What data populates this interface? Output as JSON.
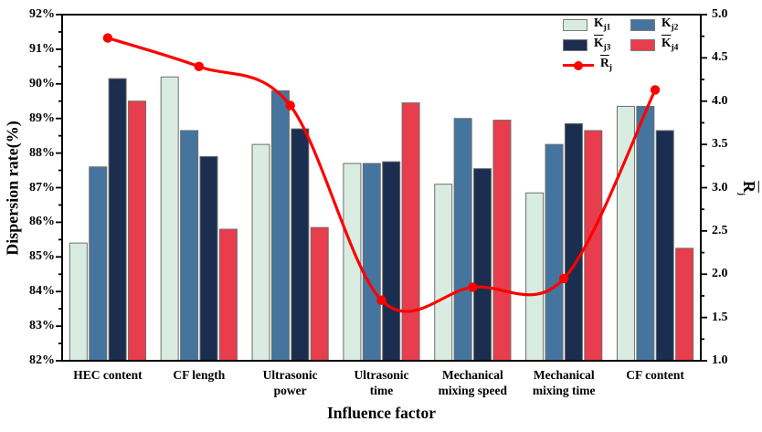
{
  "chart_data": {
    "type": "bar+line",
    "xlabel": "Influence factor",
    "ylabel": "Dispersion rate(%)",
    "y2label": {
      "base": "R",
      "sub": "j",
      "overline": true
    },
    "categories": [
      [
        "HEC content"
      ],
      [
        "CF length"
      ],
      [
        "Ultrasonic",
        "power"
      ],
      [
        "Ultrasonic",
        "time"
      ],
      [
        "Mechanical",
        "mixing speed"
      ],
      [
        "Mechanical",
        "mixing time"
      ],
      [
        "CF content"
      ]
    ],
    "bar_series": [
      {
        "label": {
          "base": "K",
          "sub": "j1",
          "overline": true
        },
        "color": "#d9ece1",
        "values": [
          85.4,
          90.2,
          88.25,
          87.7,
          87.1,
          86.85,
          89.35
        ]
      },
      {
        "label": {
          "base": "K",
          "sub": "j2",
          "overline": true
        },
        "color": "#45759e",
        "values": [
          87.6,
          88.65,
          89.8,
          87.7,
          89.0,
          88.25,
          89.35
        ]
      },
      {
        "label": {
          "base": "K",
          "sub": "j3",
          "overline": true
        },
        "color": "#1b2e4f",
        "values": [
          90.15,
          87.9,
          88.7,
          87.75,
          87.55,
          88.85,
          88.65
        ]
      },
      {
        "label": {
          "base": "K",
          "sub": "j4",
          "overline": true
        },
        "color": "#e83d4c",
        "values": [
          89.5,
          85.8,
          85.85,
          89.45,
          88.95,
          88.65,
          85.25
        ]
      }
    ],
    "line_series": {
      "label": {
        "base": "R",
        "sub": "j",
        "overline": true
      },
      "color": "#fe0000",
      "values": [
        4.73,
        4.4,
        3.95,
        1.7,
        1.85,
        1.95,
        4.13
      ]
    },
    "y_axis": {
      "min": 82,
      "max": 92,
      "major_step": 1,
      "minor_step": 0.5,
      "format": "percent"
    },
    "y2_axis": {
      "min": 1.0,
      "max": 5.0,
      "major_step": 0.5,
      "minor_step": 0.25,
      "format": "one_decimal"
    },
    "legend_position": "top-right",
    "grid": false,
    "axis_color": "#000000",
    "bar_edge_color": "#6e6e6e"
  }
}
